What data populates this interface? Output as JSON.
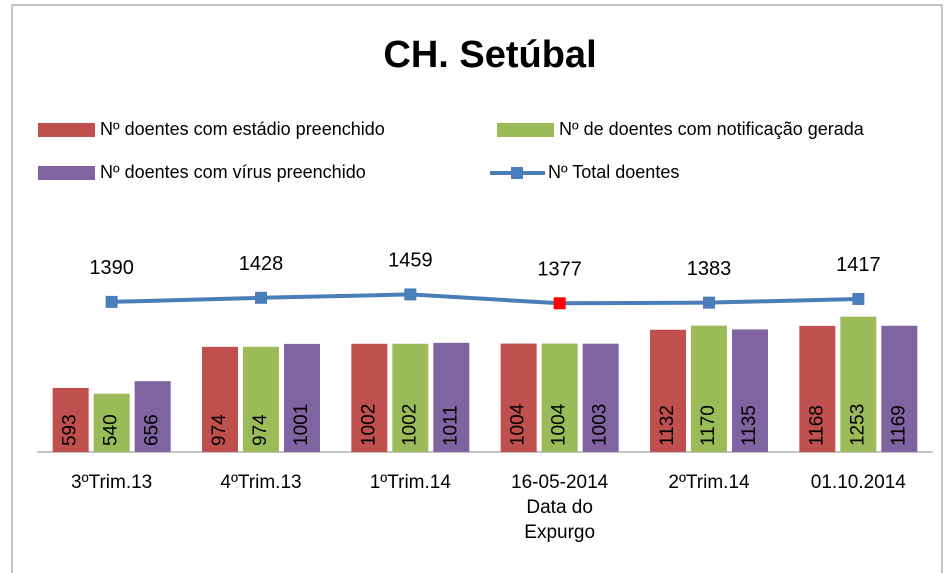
{
  "chart_data": {
    "type": "bar_line",
    "title": "CH. Setúbal",
    "categories": [
      "3ºTrim.13",
      "4ºTrim.13",
      "1ºTrim.14",
      "16-05-2014 Data do Expurgo",
      "2ºTrim.14",
      "01.10.2014"
    ],
    "series": [
      {
        "name": "Nº  doentes com estádio preenchido",
        "type": "bar",
        "color": "#c0504d",
        "values": [
          593,
          974,
          1002,
          1004,
          1132,
          1168
        ]
      },
      {
        "name": "Nº de doentes com notificação gerada",
        "type": "bar",
        "color": "#9bbb59",
        "values": [
          540,
          974,
          1002,
          1004,
          1170,
          1253
        ]
      },
      {
        "name": "Nº  doentes com vírus preenchido",
        "type": "bar",
        "color": "#8064a2",
        "values": [
          656,
          1001,
          1011,
          1003,
          1135,
          1169
        ]
      },
      {
        "name": "Nº  Total doentes",
        "type": "line",
        "color": "#4a7ebb",
        "values": [
          1390,
          1428,
          1459,
          1377,
          1383,
          1417
        ],
        "highlight": {
          "index": 3,
          "color": "#ff0000"
        }
      }
    ],
    "ylim": [
      0,
      2000
    ],
    "data_labels": true,
    "legend": "top"
  }
}
